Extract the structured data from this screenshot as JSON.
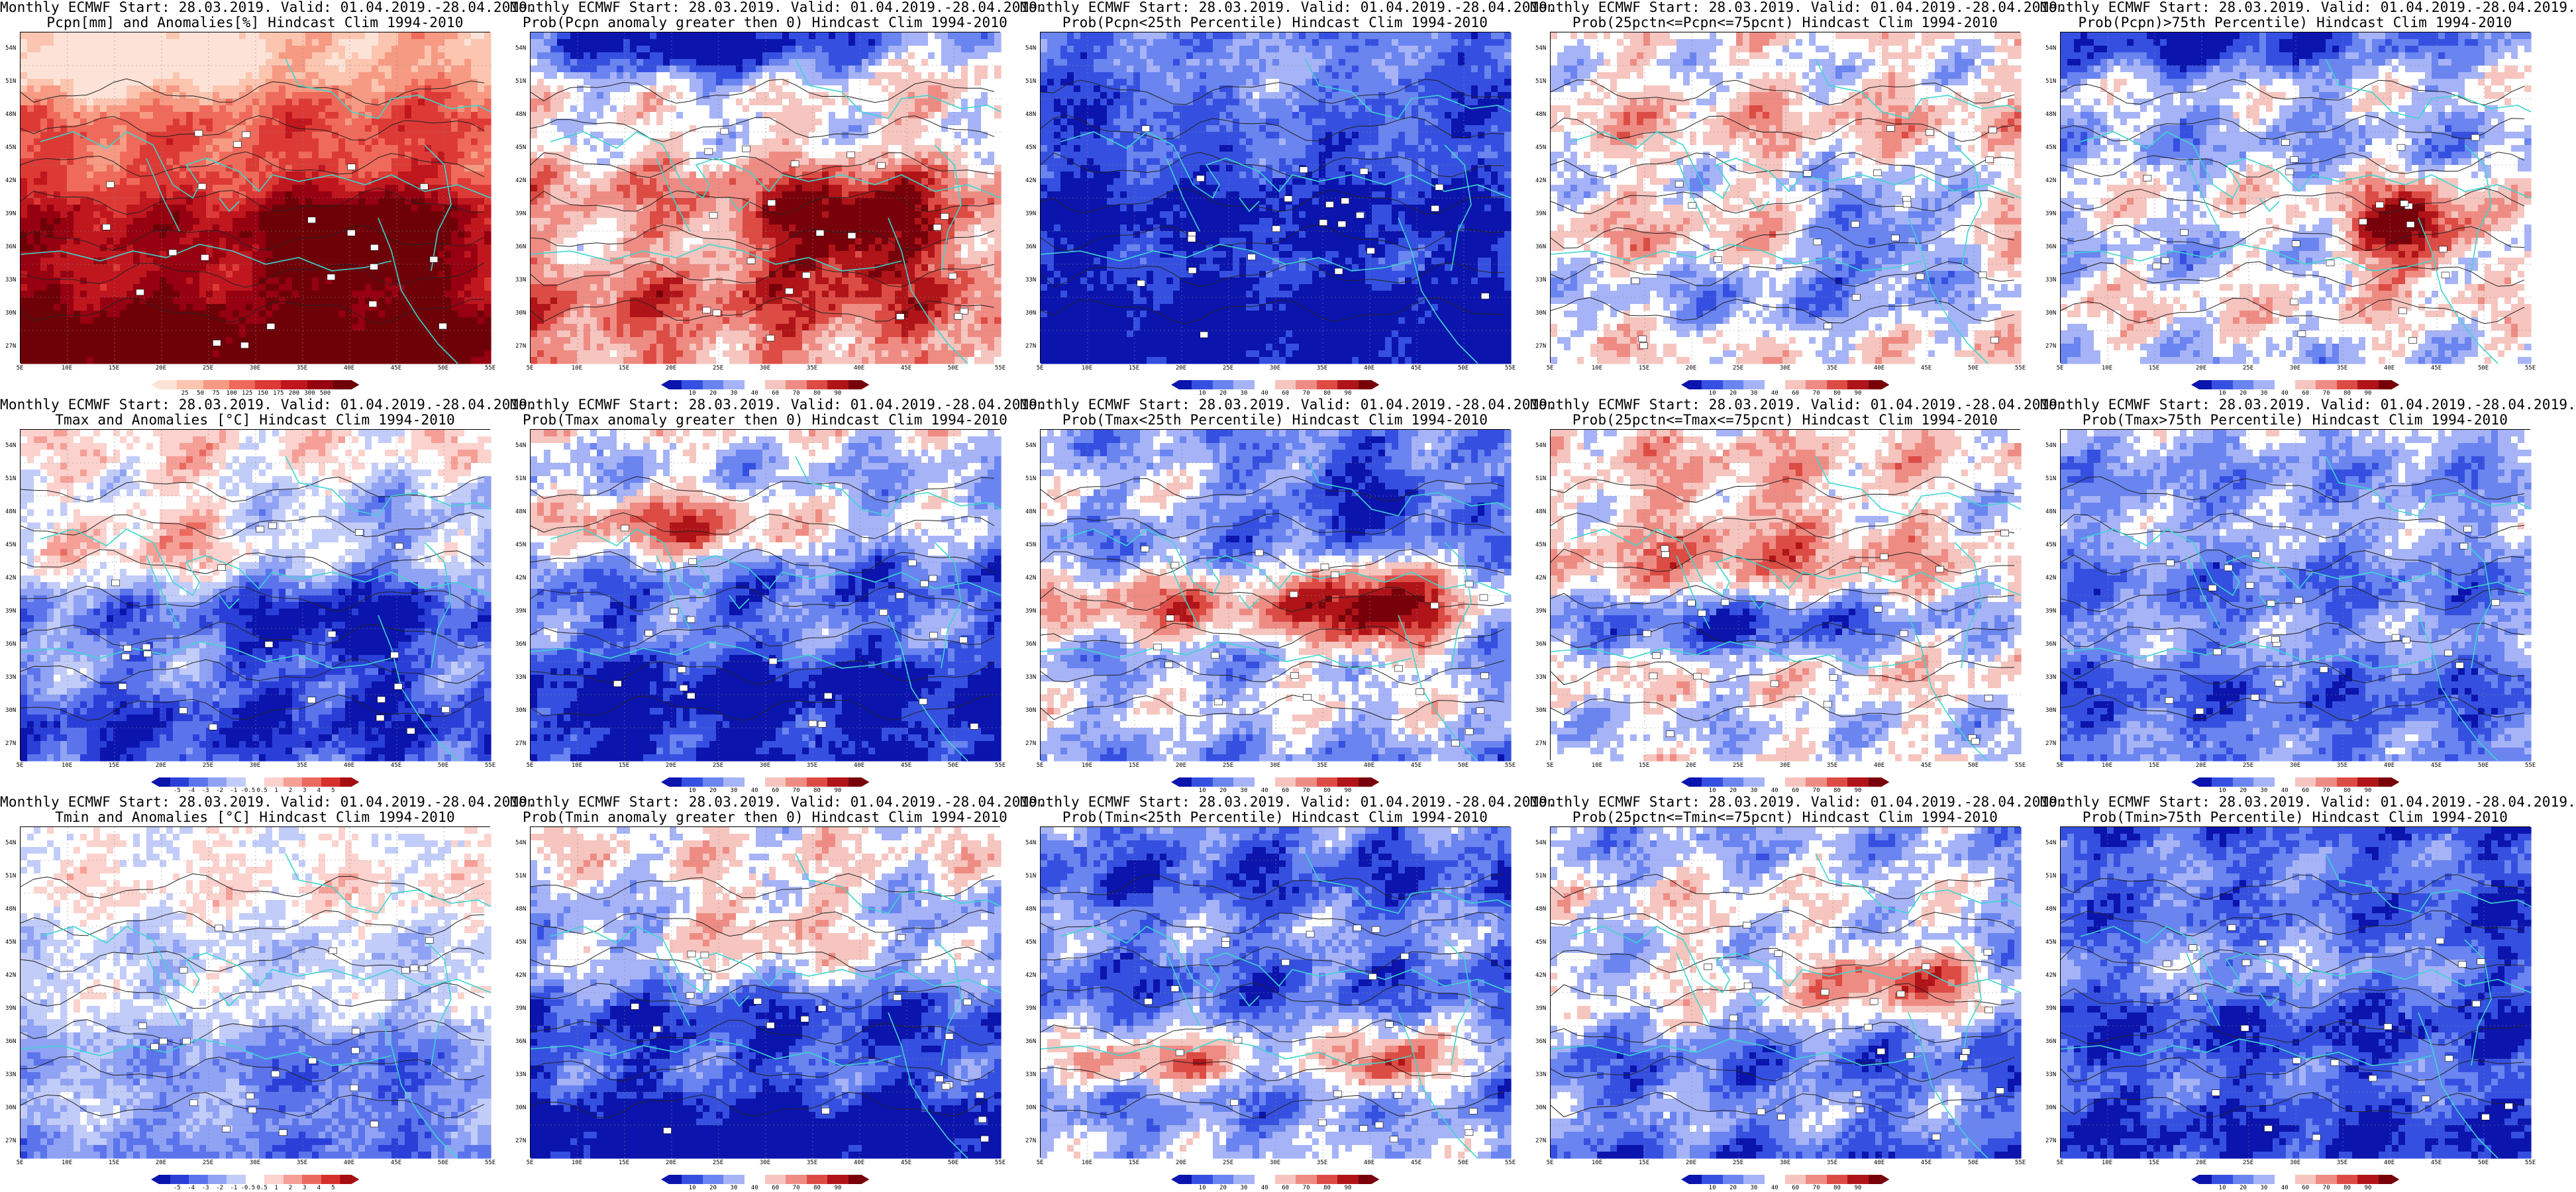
{
  "lat_labels": [
    "54N",
    "51N",
    "48N",
    "45N",
    "42N",
    "39N",
    "36N",
    "33N",
    "30N",
    "27N"
  ],
  "lon_labels": [
    "5E",
    "10E",
    "15E",
    "20E",
    "25E",
    "30E",
    "35E",
    "40E",
    "45E",
    "50E",
    "55E"
  ],
  "colors": {
    "anom_precip": [
      "#fde3d7",
      "#fbc5b0",
      "#f79a83",
      "#ef6a5a",
      "#dd3a36",
      "#c0161e",
      "#960010",
      "#6e0008"
    ],
    "anom_temp": [
      "#0b14ad",
      "#2a3fd8",
      "#5b74ec",
      "#8fa2f4",
      "#c2ccf9",
      "#ffffff",
      "#fbd2cd",
      "#f59f97",
      "#eb6a60",
      "#d6302a",
      "#a50d10"
    ],
    "prob": [
      "#0b14ad",
      "#3550e0",
      "#6a84f0",
      "#a6b3f7",
      "#ffffff",
      "#f6c5bf",
      "#ee8c84",
      "#dc4c44",
      "#b01418",
      "#78000a"
    ],
    "coast": "#3dd6d0",
    "contour": "#222222"
  },
  "rows": [
    {
      "panels": [
        {
          "line1": "Monthly ECMWF Start: 28.03.2019. Valid: 01.04.2019.-28.04.2019.",
          "line2": "Pcpn[mm] and Anomalies[%] Hindcast Clim 1994-2010",
          "scale": "anom_precip",
          "labels": [
            "25",
            "50",
            "75",
            "100",
            "125",
            "150",
            "175",
            "200",
            "300",
            "500"
          ],
          "field": "precip-anom"
        },
        {
          "line1": "Monthly ECMWF Start: 28.03.2019. Valid: 01.04.2019.-28.04.2019.",
          "line2": "Prob(Pcpn anomaly greater then 0) Hindcast Clim 1994-2010",
          "scale": "prob",
          "labels": [
            "10",
            "20",
            "30",
            "40",
            "60",
            "70",
            "80",
            "90"
          ],
          "field": "precip-pos"
        },
        {
          "line1": "Monthly ECMWF Start: 28.03.2019. Valid: 01.04.2019.-28.04.2019.",
          "line2": "Prob(Pcpn<25th Percentile) Hindcast Clim 1994-2010",
          "scale": "prob",
          "labels": [
            "10",
            "20",
            "30",
            "40",
            "60",
            "70",
            "80",
            "90"
          ],
          "field": "precip-low"
        },
        {
          "line1": "Monthly ECMWF Start: 28.03.2019. Valid: 01.04.2019.-28.04.2019.",
          "line2": "Prob(25pctn<=Pcpn<=75pcnt) Hindcast Clim 1994-2010",
          "scale": "prob",
          "labels": [
            "10",
            "20",
            "30",
            "40",
            "60",
            "70",
            "80",
            "90"
          ],
          "field": "precip-mid"
        },
        {
          "line1": "Monthly ECMWF Start: 28.03.2019. Valid: 01.04.2019.-28.04.2019.",
          "line2": "Prob(Pcpn)>75th Percentile) Hindcast Clim 1994-2010",
          "scale": "prob",
          "labels": [
            "10",
            "20",
            "30",
            "40",
            "60",
            "70",
            "80",
            "90"
          ],
          "field": "precip-high"
        }
      ]
    },
    {
      "panels": [
        {
          "line1": "Monthly ECMWF Start: 28.03.2019. Valid: 01.04.2019.-28.04.2019.",
          "line2": "Tmax and Anomalies [°C] Hindcast Clim 1994-2010",
          "scale": "anom_temp",
          "labels": [
            "-5",
            "-4",
            "-3",
            "-2",
            "-1",
            "-0.5",
            "0.5",
            "1",
            "2",
            "3",
            "4",
            "5"
          ],
          "field": "tmax-anom"
        },
        {
          "line1": "Monthly ECMWF Start: 28.03.2019. Valid: 01.04.2019.-28.04.2019.",
          "line2": "Prob(Tmax anomaly greater then 0) Hindcast Clim 1994-2010",
          "scale": "prob",
          "labels": [
            "10",
            "20",
            "30",
            "40",
            "60",
            "70",
            "80",
            "90"
          ],
          "field": "tmax-pos"
        },
        {
          "line1": "Monthly ECMWF Start: 28.03.2019. Valid: 01.04.2019.-28.04.2019.",
          "line2": "Prob(Tmax<25th Percentile) Hindcast Clim 1994-2010",
          "scale": "prob",
          "labels": [
            "10",
            "20",
            "30",
            "40",
            "60",
            "70",
            "80",
            "90"
          ],
          "field": "tmax-low"
        },
        {
          "line1": "Monthly ECMWF Start: 28.03.2019. Valid: 01.04.2019.-28.04.2019.",
          "line2": "Prob(25pctn<=Tmax<=75pcnt) Hindcast Clim 1994-2010",
          "scale": "prob",
          "labels": [
            "10",
            "20",
            "30",
            "40",
            "60",
            "70",
            "80",
            "90"
          ],
          "field": "tmax-mid"
        },
        {
          "line1": "Monthly ECMWF Start: 28.03.2019. Valid: 01.04.2019.-28.04.2019.",
          "line2": "Prob(Tmax>75th Percentile) Hindcast Clim 1994-2010",
          "scale": "prob",
          "labels": [
            "10",
            "20",
            "30",
            "40",
            "60",
            "70",
            "80",
            "90"
          ],
          "field": "tmax-high"
        }
      ]
    },
    {
      "panels": [
        {
          "line1": "Monthly ECMWF Start: 28.03.2019. Valid: 01.04.2019.-28.04.2019.",
          "line2": "Tmin and Anomalies [°C] Hindcast Clim 1994-2010",
          "scale": "anom_temp",
          "labels": [
            "-5",
            "-4",
            "-3",
            "-2",
            "-1",
            "-0.5",
            "0.5",
            "1",
            "2",
            "3",
            "4",
            "5"
          ],
          "field": "tmin-anom"
        },
        {
          "line1": "Monthly ECMWF Start: 28.03.2019. Valid: 01.04.2019.-28.04.2019.",
          "line2": "Prob(Tmin anomaly greater then 0) Hindcast Clim 1994-2010",
          "scale": "prob",
          "labels": [
            "10",
            "20",
            "30",
            "40",
            "60",
            "70",
            "80",
            "90"
          ],
          "field": "tmin-pos"
        },
        {
          "line1": "Monthly ECMWF Start: 28.03.2019. Valid: 01.04.2019.-28.04.2019.",
          "line2": "Prob(Tmin<25th Percentile) Hindcast Clim 1994-2010",
          "scale": "prob",
          "labels": [
            "10",
            "20",
            "30",
            "40",
            "60",
            "70",
            "80",
            "90"
          ],
          "field": "tmin-low"
        },
        {
          "line1": "Monthly ECMWF Start: 28.03.2019. Valid: 01.04.2019.-28.04.2019.",
          "line2": "Prob(25pctn<=Tmin<=75pcnt) Hindcast Clim 1994-2010",
          "scale": "prob",
          "labels": [
            "10",
            "20",
            "30",
            "40",
            "60",
            "70",
            "80",
            "90"
          ],
          "field": "tmin-mid"
        },
        {
          "line1": "Monthly ECMWF Start: 28.03.2019. Valid: 01.04.2019.-28.04.2019.",
          "line2": "Prob(Tmin>75th Percentile) Hindcast Clim 1994-2010",
          "scale": "prob",
          "labels": [
            "10",
            "20",
            "30",
            "40",
            "60",
            "70",
            "80",
            "90"
          ],
          "field": "tmin-high"
        }
      ]
    }
  ]
}
